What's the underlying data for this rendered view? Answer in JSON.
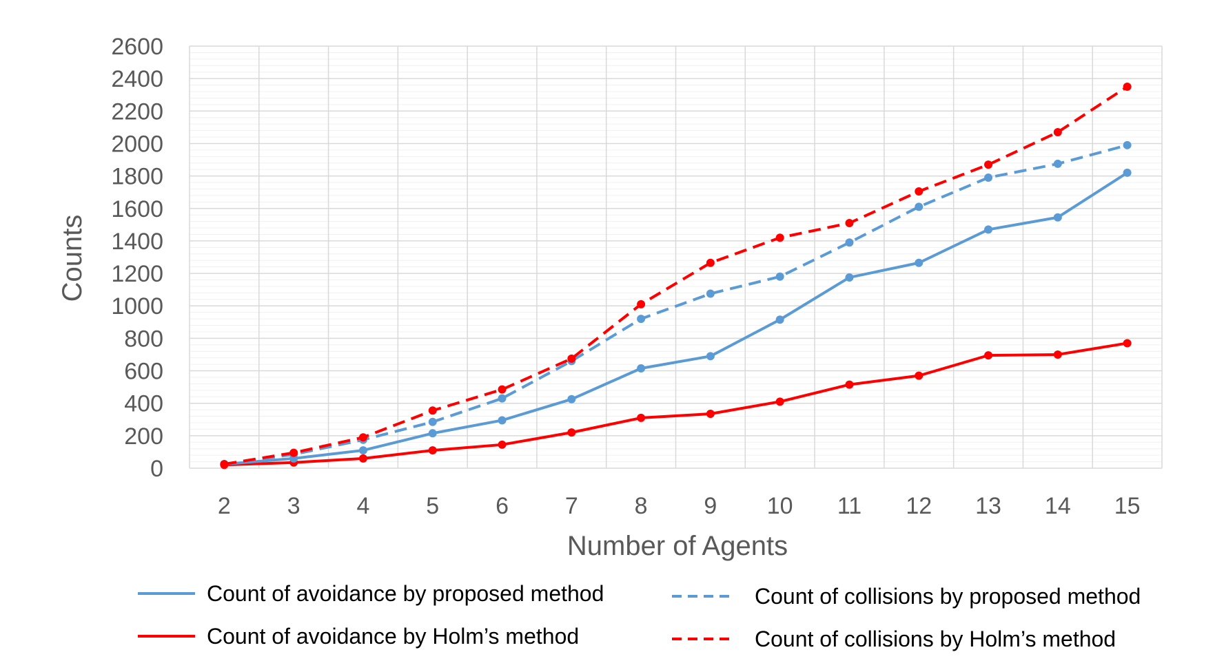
{
  "chart_data": {
    "type": "line",
    "title": "",
    "xlabel": "Number of Agents",
    "ylabel": "Counts",
    "categories": [
      "2",
      "3",
      "4",
      "5",
      "6",
      "7",
      "8",
      "9",
      "10",
      "11",
      "12",
      "13",
      "14",
      "15"
    ],
    "x": [
      2,
      3,
      4,
      5,
      6,
      7,
      8,
      9,
      10,
      11,
      12,
      13,
      14,
      15
    ],
    "ylim": [
      0,
      2600
    ],
    "yticks": [
      0,
      200,
      400,
      600,
      800,
      1000,
      1200,
      1400,
      1600,
      1800,
      2000,
      2200,
      2400,
      2600
    ],
    "grid": true,
    "legend_position": "bottom",
    "series": [
      {
        "name": "Count of avoidance by proposed method",
        "color": "#5B9BD5",
        "dashed": false,
        "values": [
          25,
          60,
          110,
          215,
          295,
          425,
          615,
          690,
          915,
          1175,
          1265,
          1470,
          1545,
          1820
        ]
      },
      {
        "name": "Count of collisions by proposed method",
        "color": "#5B9BD5",
        "dashed": true,
        "values": [
          25,
          85,
          175,
          285,
          430,
          660,
          920,
          1075,
          1180,
          1390,
          1610,
          1790,
          1875,
          1990
        ]
      },
      {
        "name": "Count of avoidance by Holm’s method",
        "color": "#FF0000",
        "dashed": false,
        "values": [
          20,
          35,
          60,
          110,
          145,
          220,
          310,
          335,
          410,
          515,
          570,
          695,
          700,
          770
        ]
      },
      {
        "name": "Count of collisions by Holm’s method",
        "color": "#FF0000",
        "dashed": true,
        "values": [
          25,
          95,
          190,
          355,
          485,
          675,
          1010,
          1265,
          1420,
          1510,
          1705,
          1870,
          2070,
          2350
        ]
      }
    ]
  }
}
